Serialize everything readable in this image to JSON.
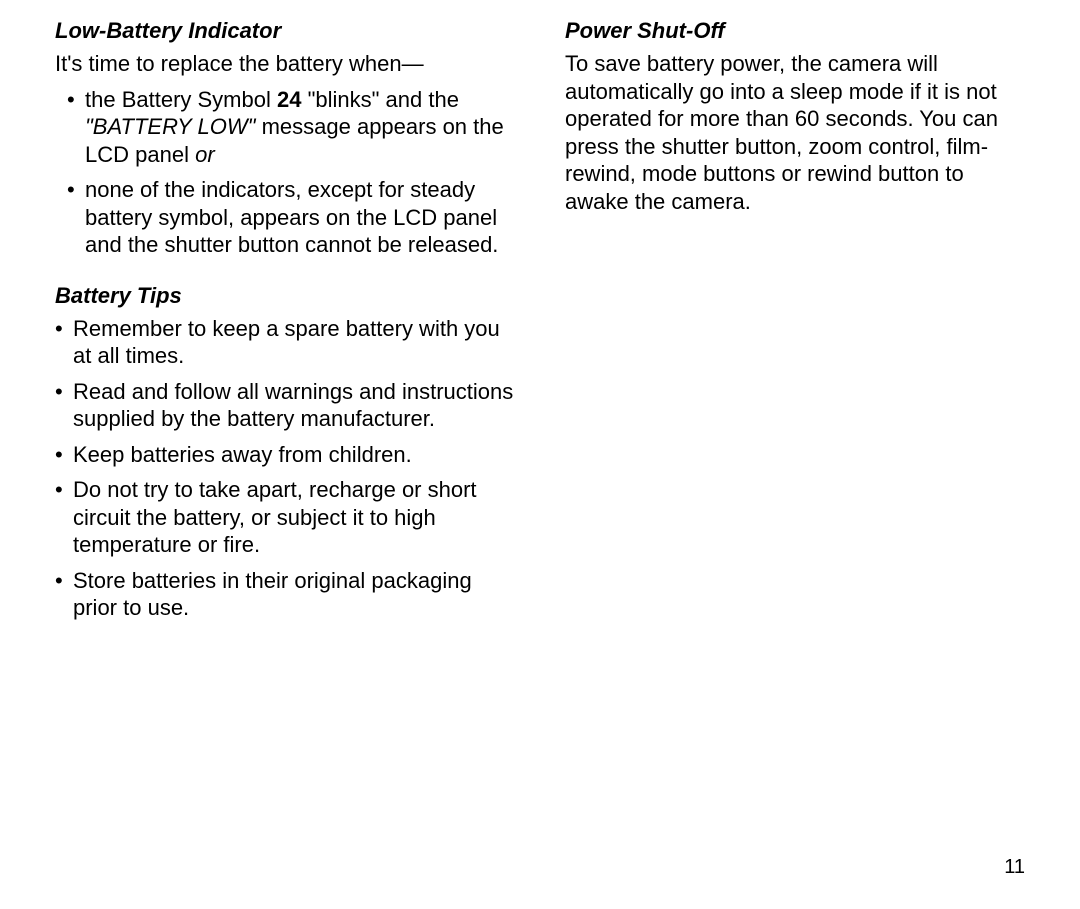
{
  "page": {
    "number": "11",
    "background_color": "#ffffff",
    "text_color": "#000000",
    "font_size_body": 22,
    "font_size_page_num": 20,
    "font_family": "Arial, Helvetica, sans-serif"
  },
  "left_column": {
    "section1": {
      "heading": "Low-Battery Indicator",
      "intro": "It's time to replace the battery when—",
      "bullets": [
        {
          "parts": [
            {
              "text": "the Battery Symbol ",
              "style": "normal"
            },
            {
              "text": "24",
              "style": "bold"
            },
            {
              "text": " \"blinks\" and the ",
              "style": "normal"
            },
            {
              "text": "\"BATTERY LOW\"",
              "style": "italic"
            },
            {
              "text": " message appears on the LCD panel ",
              "style": "normal"
            },
            {
              "text": "or",
              "style": "italic"
            }
          ]
        },
        {
          "parts": [
            {
              "text": "none of the indicators, except for steady battery symbol, appears on the LCD panel and the shutter button cannot be released.",
              "style": "normal"
            }
          ]
        }
      ]
    },
    "section2": {
      "heading": "Battery Tips",
      "bullets": [
        "Remember to keep a spare battery with you at all times.",
        "Read and follow all warnings and instructions supplied by the battery manufacturer.",
        "Keep batteries away from children.",
        "Do not try to take apart, recharge or short circuit the battery, or subject it to high temperature or fire.",
        "Store batteries in their original packaging prior to use."
      ]
    }
  },
  "right_column": {
    "section1": {
      "heading": "Power Shut-Off",
      "body": "To save battery power, the camera will automatically go into a sleep mode if it is not operated for more than 60 seconds. You can press the shutter button, zoom control, film-rewind, mode buttons or rewind button to awake the camera."
    }
  }
}
